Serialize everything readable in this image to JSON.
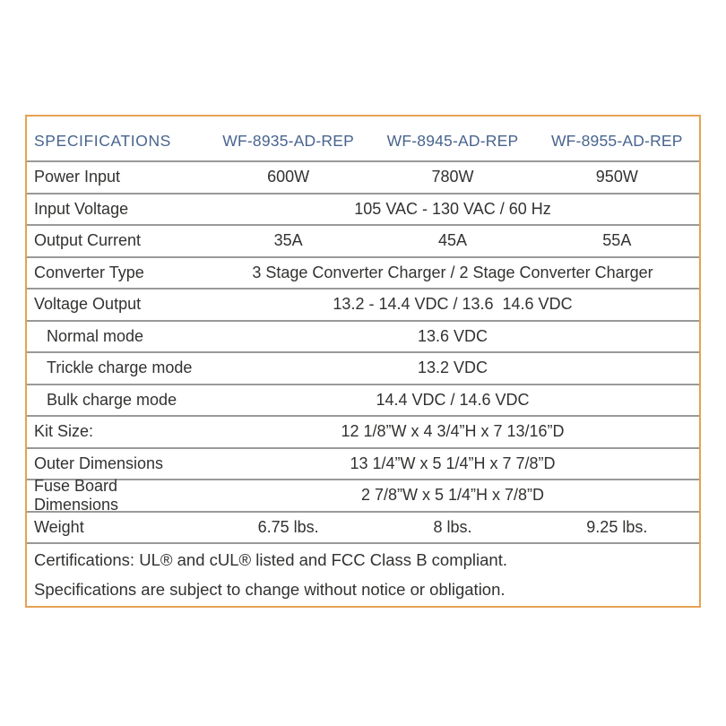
{
  "table": {
    "title": "SPECIFICATIONS",
    "columns": [
      "WF-8935-AD-REP",
      "WF-8945-AD-REP",
      "WF-8955-AD-REP"
    ],
    "rows": [
      {
        "label": "Power Input",
        "values": [
          "600W",
          "780W",
          "950W"
        ],
        "indent": false
      },
      {
        "label": "Input Voltage",
        "span": "105 VAC - 130 VAC / 60 Hz",
        "indent": false
      },
      {
        "label": "Output Current",
        "values": [
          "35A",
          "45A",
          "55A"
        ],
        "indent": false
      },
      {
        "label": "Converter Type",
        "span": "3 Stage Converter Charger / 2 Stage Converter Charger",
        "indent": false
      },
      {
        "label": "Voltage Output",
        "span": "13.2 - 14.4 VDC / 13.6  14.6 VDC",
        "indent": false
      },
      {
        "label": "Normal mode",
        "span": "13.6 VDC",
        "indent": true
      },
      {
        "label": "Trickle charge mode",
        "span": "13.2 VDC",
        "indent": true
      },
      {
        "label": "Bulk charge mode",
        "span": "14.4 VDC / 14.6 VDC",
        "indent": true
      },
      {
        "label": "Kit Size:",
        "span": "12 1/8”W x 4 3/4”H x 7 13/16”D",
        "indent": false
      },
      {
        "label": "Outer Dimensions",
        "span": "13 1/4”W x 5 1/4”H x 7 7/8”D",
        "indent": false
      },
      {
        "label": "Fuse Board Dimensions",
        "span": "2 7/8”W x 5 1/4”H x 7/8”D",
        "indent": false
      },
      {
        "label": "Weight",
        "values": [
          "6.75 lbs.",
          "8 lbs.",
          "9.25 lbs."
        ],
        "indent": false
      }
    ],
    "footer_lines": [
      "Certifications: UL® and cUL® listed and FCC Class B compliant.",
      "Specifications are subject to change without notice or obligation."
    ]
  },
  "colors": {
    "border": "#E5A153",
    "header_text": "#48648E",
    "body_text": "#333230",
    "separator": "#999999",
    "background": "#FFFFFF"
  }
}
